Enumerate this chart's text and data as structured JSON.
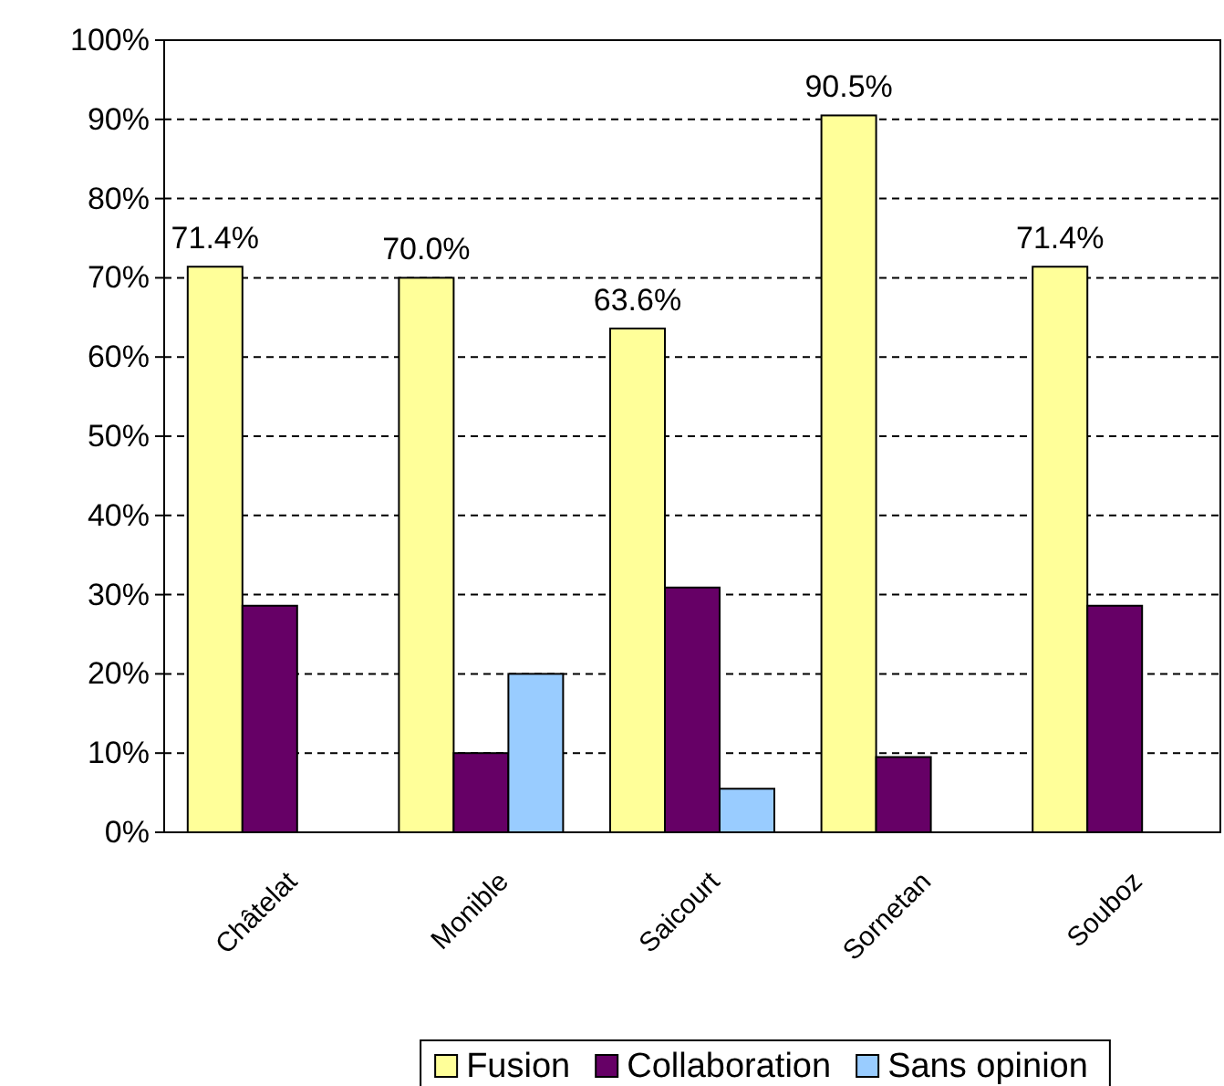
{
  "chart_data": {
    "type": "bar",
    "categories": [
      "Châtelat",
      "Monible",
      "Saicourt",
      "Sornetan",
      "Souboz"
    ],
    "series": [
      {
        "name": "Fusion",
        "color": "#ffff99",
        "values": [
          71.4,
          70.0,
          63.6,
          90.5,
          71.4
        ],
        "value_labels": [
          "71.4%",
          "70.0%",
          "63.6%",
          "90.5%",
          "71.4%"
        ]
      },
      {
        "name": "Collaboration",
        "color": "#660066",
        "values": [
          28.6,
          10,
          30.9,
          9.5,
          28.6
        ]
      },
      {
        "name": "Sans opinion",
        "color": "#99ccff",
        "values": [
          null,
          20,
          5.5,
          null,
          null
        ]
      }
    ],
    "ylim": [
      0,
      100
    ],
    "yticks": [
      {
        "value": 0,
        "label": "0%"
      },
      {
        "value": 10,
        "label": "10%"
      },
      {
        "value": 20,
        "label": "20%"
      },
      {
        "value": 30,
        "label": "30%"
      },
      {
        "value": 40,
        "label": "40%"
      },
      {
        "value": 50,
        "label": "50%"
      },
      {
        "value": 60,
        "label": "60%"
      },
      {
        "value": 70,
        "label": "70%"
      },
      {
        "value": 80,
        "label": "80%"
      },
      {
        "value": 90,
        "label": "90%"
      },
      {
        "value": 100,
        "label": "100%"
      }
    ],
    "grid": "y",
    "legend": "bottom"
  }
}
